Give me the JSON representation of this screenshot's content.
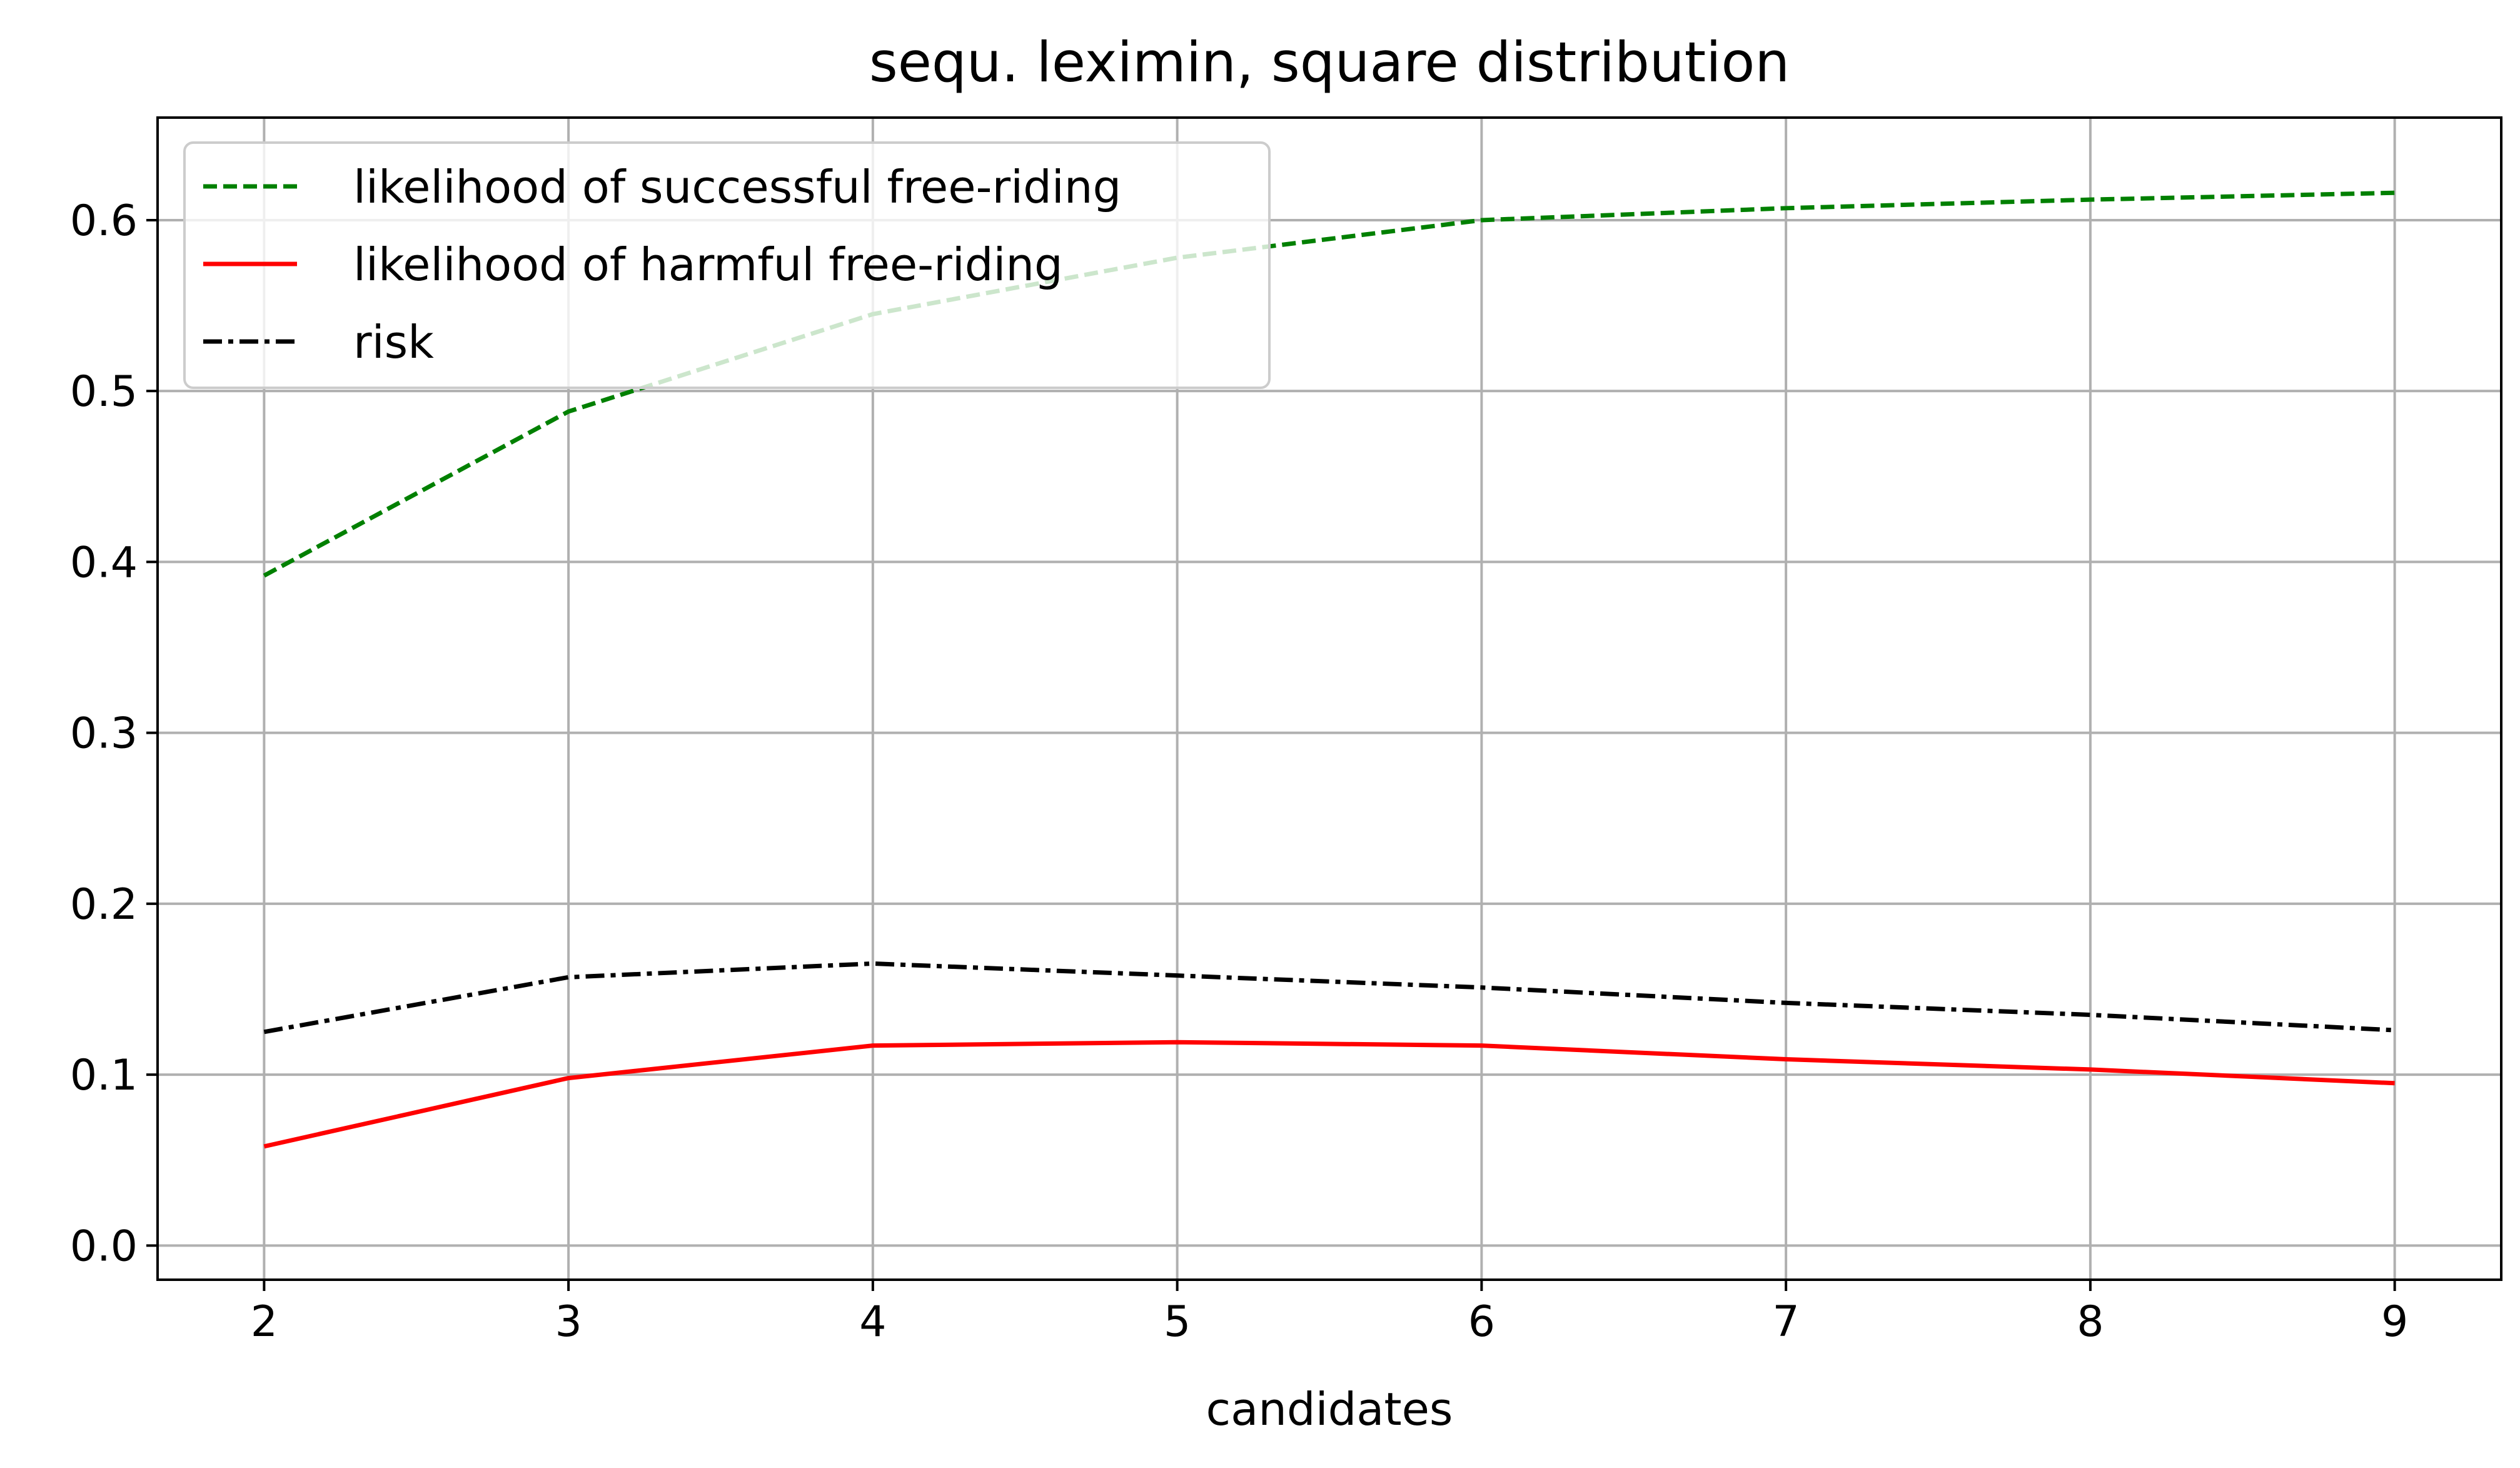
{
  "chart_data": {
    "type": "line",
    "title": "sequ. leximin, square distribution",
    "xlabel": "candidates",
    "ylabel": "",
    "x": [
      2,
      3,
      4,
      5,
      6,
      7,
      8,
      9
    ],
    "xlim": [
      1.65,
      9.35
    ],
    "ylim": [
      -0.02,
      0.66
    ],
    "xticks": [
      2,
      3,
      4,
      5,
      6,
      7,
      8,
      9
    ],
    "yticks": [
      0.0,
      0.1,
      0.2,
      0.3,
      0.4,
      0.5,
      0.6
    ],
    "xtick_labels": [
      "2",
      "3",
      "4",
      "5",
      "6",
      "7",
      "8",
      "9"
    ],
    "ytick_labels": [
      "0.0",
      "0.1",
      "0.2",
      "0.3",
      "0.4",
      "0.5",
      "0.6"
    ],
    "grid": true,
    "legend_position": "top-left",
    "series": [
      {
        "name": "likelihood of successful free-riding",
        "values": [
          0.392,
          0.488,
          0.545,
          0.578,
          0.6,
          0.607,
          0.612,
          0.616
        ],
        "color": "#008000",
        "style": "dashed"
      },
      {
        "name": "likelihood of harmful free-riding",
        "values": [
          0.058,
          0.098,
          0.117,
          0.119,
          0.117,
          0.109,
          0.103,
          0.095
        ],
        "color": "#ff0000",
        "style": "solid"
      },
      {
        "name": "risk",
        "values": [
          0.125,
          0.157,
          0.165,
          0.158,
          0.151,
          0.142,
          0.135,
          0.126
        ],
        "color": "#000000",
        "style": "dashdot"
      }
    ]
  }
}
